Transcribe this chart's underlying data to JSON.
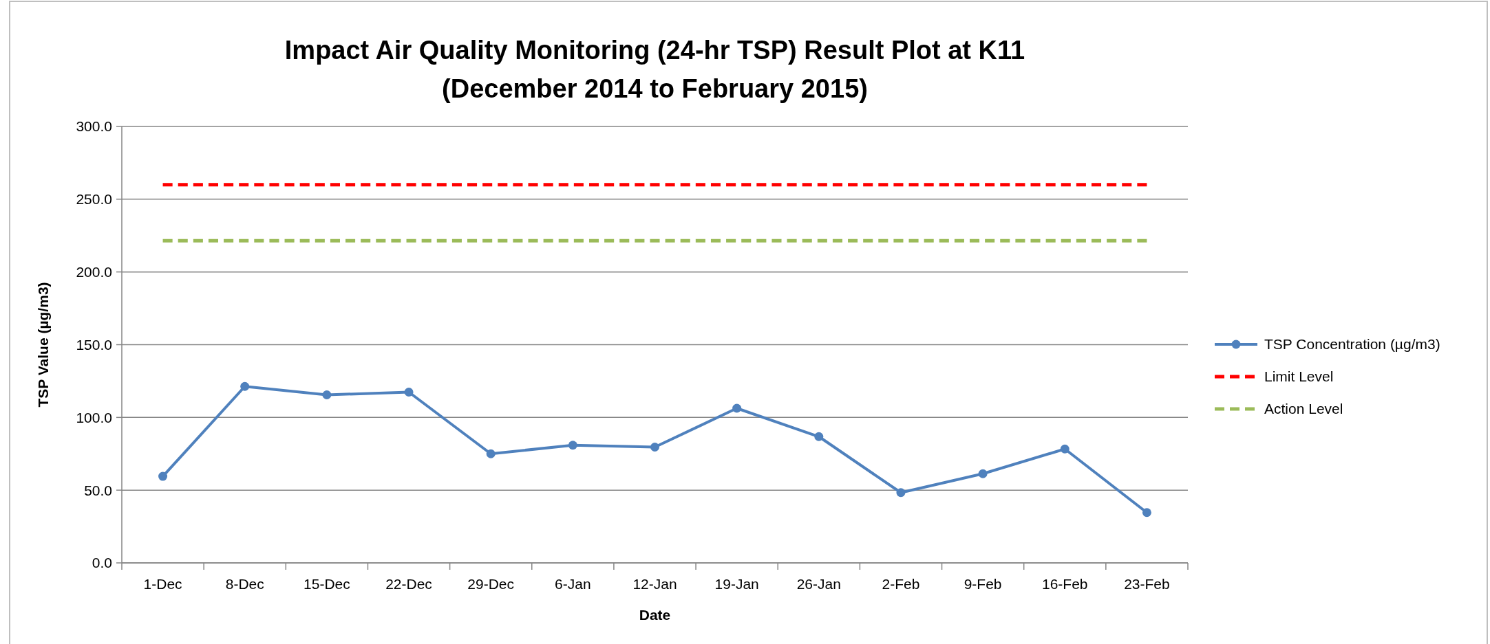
{
  "chart_data": {
    "type": "line",
    "title": "Impact Air Quality Monitoring (24-hr TSP) Result Plot at K11\n(December 2014 to February 2015)",
    "xlabel": "Date",
    "ylabel": "TSP Value (µg/m3)",
    "categories": [
      "1-Dec",
      "8-Dec",
      "15-Dec",
      "22-Dec",
      "29-Dec",
      "6-Jan",
      "12-Jan",
      "19-Jan",
      "26-Jan",
      "2-Feb",
      "9-Feb",
      "16-Feb",
      "23-Feb"
    ],
    "series": [
      {
        "name": "TSP Concentration (µg/m3)",
        "color": "#4f81bd",
        "marker": "circle",
        "line_style": "solid",
        "values": [
          59.5,
          121.3,
          115.5,
          117.4,
          75,
          80.9,
          79.6,
          106.3,
          86.8,
          48.3,
          61.3,
          78.3,
          34.6
        ]
      },
      {
        "name": "Limit Level",
        "color": "#ff0000",
        "marker": "none",
        "line_style": "dashed",
        "values": [
          260,
          260,
          260,
          260,
          260,
          260,
          260,
          260,
          260,
          260,
          260,
          260,
          260
        ]
      },
      {
        "name": "Action Level",
        "color": "#9bbb59",
        "marker": "none",
        "line_style": "dashed",
        "values": [
          221.5,
          221.5,
          221.5,
          221.5,
          221.5,
          221.5,
          221.5,
          221.5,
          221.5,
          221.5,
          221.5,
          221.5,
          221.5
        ]
      }
    ],
    "ylim": [
      0,
      300
    ],
    "yticks": [
      {
        "value": 0,
        "label": "0.0"
      },
      {
        "value": 50,
        "label": "50.0"
      },
      {
        "value": 100,
        "label": "100.0"
      },
      {
        "value": 150,
        "label": "150.0"
      },
      {
        "value": 200,
        "label": "200.0"
      },
      {
        "value": 250,
        "label": "250.0"
      },
      {
        "value": 300,
        "label": "300.0"
      }
    ],
    "grid": "y",
    "legend": "right"
  }
}
